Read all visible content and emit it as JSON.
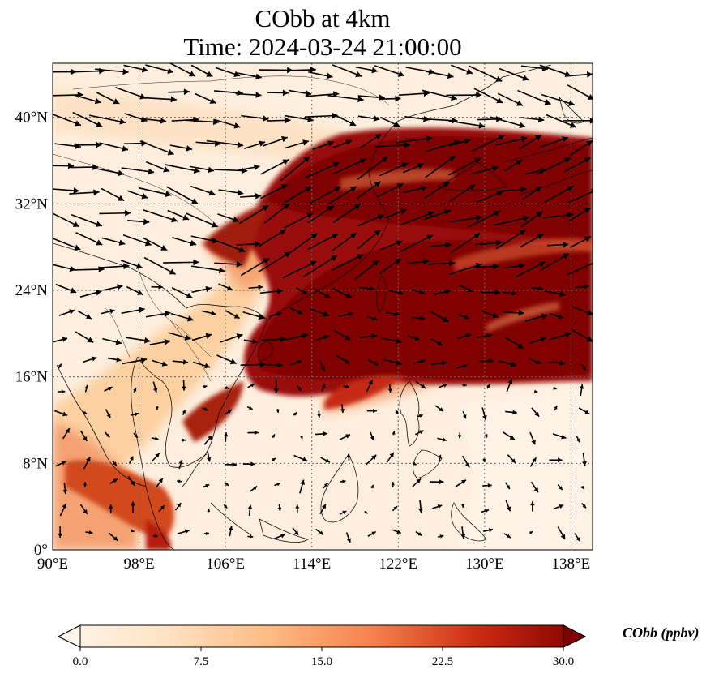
{
  "title": {
    "line1": "CObb at 4km",
    "line2": "Time: 2024-03-24 21:00:00"
  },
  "map": {
    "extent": {
      "lon_min": 90,
      "lon_max": 140,
      "lat_min": 0,
      "lat_max": 45
    },
    "lon_ticks": [
      {
        "value": 90,
        "label": "90°E"
      },
      {
        "value": 98,
        "label": "98°E"
      },
      {
        "value": 106,
        "label": "106°E"
      },
      {
        "value": 114,
        "label": "114°E"
      },
      {
        "value": 122,
        "label": "122°E"
      },
      {
        "value": 130,
        "label": "130°E"
      },
      {
        "value": 138,
        "label": "138°E"
      }
    ],
    "lat_ticks": [
      {
        "value": 0,
        "label": "0°"
      },
      {
        "value": 8,
        "label": "8°N"
      },
      {
        "value": 16,
        "label": "16°N"
      },
      {
        "value": 24,
        "label": "24°N"
      },
      {
        "value": 32,
        "label": "32°N"
      },
      {
        "value": 40,
        "label": "40°N"
      }
    ],
    "gridlines": true,
    "colormap": [
      "#fff5eb",
      "#fdd3a7",
      "#fca16a",
      "#e5572e",
      "#b0160f",
      "#7f0000"
    ]
  },
  "colorbar": {
    "title": "CObb (ppbv)",
    "min": 0,
    "max": 30,
    "ticks": [
      {
        "value": 0,
        "label": "0.0"
      },
      {
        "value": 7.5,
        "label": "7.5"
      },
      {
        "value": 15,
        "label": "15.0"
      },
      {
        "value": 22.5,
        "label": "22.5"
      },
      {
        "value": 30,
        "label": "30.0"
      }
    ],
    "extend": "both"
  }
}
